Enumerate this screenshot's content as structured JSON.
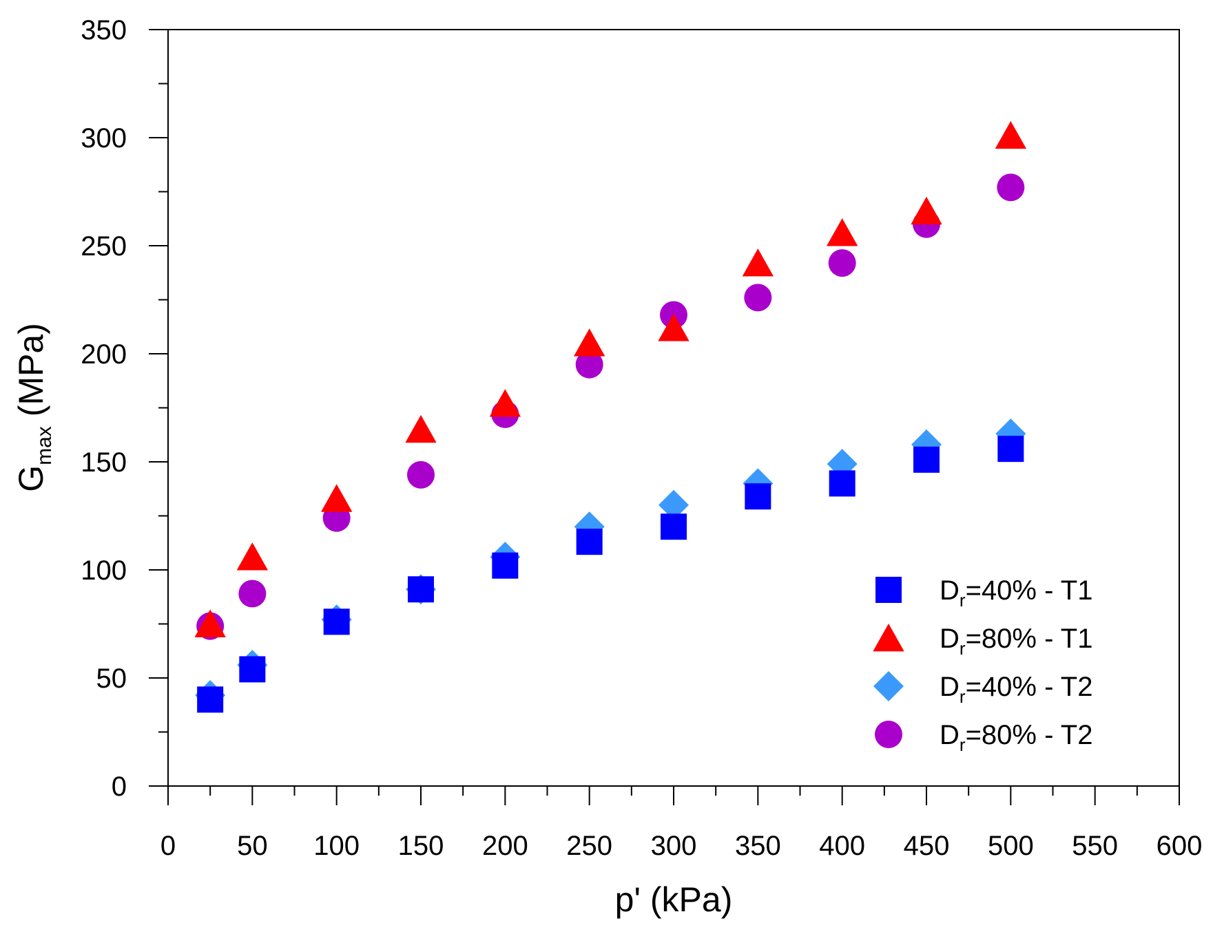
{
  "chart_data": {
    "type": "scatter",
    "title": "",
    "xlabel": "p' (kPa)",
    "ylabel": {
      "main": "G",
      "sub": "max",
      "unit": " (MPa)"
    },
    "xlim": [
      0,
      600
    ],
    "ylim": [
      0,
      350
    ],
    "x_ticks": [
      0,
      50,
      100,
      150,
      200,
      250,
      300,
      350,
      400,
      450,
      500,
      550,
      600
    ],
    "y_ticks": [
      0,
      50,
      100,
      150,
      200,
      250,
      300,
      350
    ],
    "x_tick_labels": [
      "0",
      "50",
      "100",
      "150",
      "200",
      "250",
      "300",
      "350",
      "400",
      "450",
      "500",
      "550",
      "600"
    ],
    "y_tick_labels": [
      "0",
      "50",
      "100",
      "150",
      "200",
      "250",
      "300",
      "350"
    ],
    "grid": false,
    "legend_position": "bottom-right",
    "series": [
      {
        "name": "Dr=40% - T1",
        "legend": {
          "main": "D",
          "sub": "r",
          "rest": "=40% - T1"
        },
        "marker": "square",
        "color": "#0000ff",
        "x": [
          25,
          50,
          100,
          150,
          200,
          250,
          300,
          350,
          400,
          450,
          500
        ],
        "y": [
          40,
          54,
          76,
          91,
          102,
          113,
          120,
          134,
          140,
          151,
          156
        ]
      },
      {
        "name": "Dr=80% - T1",
        "legend": {
          "main": "D",
          "sub": "r",
          "rest": "=80% - T1"
        },
        "marker": "triangle",
        "color": "#ff0000",
        "x": [
          25,
          50,
          100,
          150,
          200,
          250,
          300,
          350,
          400,
          450,
          500
        ],
        "y": [
          75,
          106,
          133,
          165,
          177,
          205,
          212,
          242,
          256,
          266,
          301
        ]
      },
      {
        "name": "Dr=40% - T2",
        "legend": {
          "main": "D",
          "sub": "r",
          "rest": "=40% - T2"
        },
        "marker": "diamond",
        "color": "#3b99fc",
        "x": [
          25,
          50,
          100,
          150,
          200,
          250,
          300,
          350,
          400,
          450,
          500
        ],
        "y": [
          42,
          56,
          77,
          91,
          106,
          120,
          130,
          140,
          149,
          158,
          163
        ]
      },
      {
        "name": "Dr=80% - T2",
        "legend": {
          "main": "D",
          "sub": "r",
          "rest": "=80% - T2"
        },
        "marker": "circle",
        "color": "#aa00cc",
        "x": [
          25,
          50,
          100,
          150,
          200,
          250,
          300,
          350,
          400,
          450,
          500
        ],
        "y": [
          74,
          89,
          124,
          144,
          172,
          195,
          218,
          226,
          242,
          260,
          277
        ]
      }
    ]
  }
}
